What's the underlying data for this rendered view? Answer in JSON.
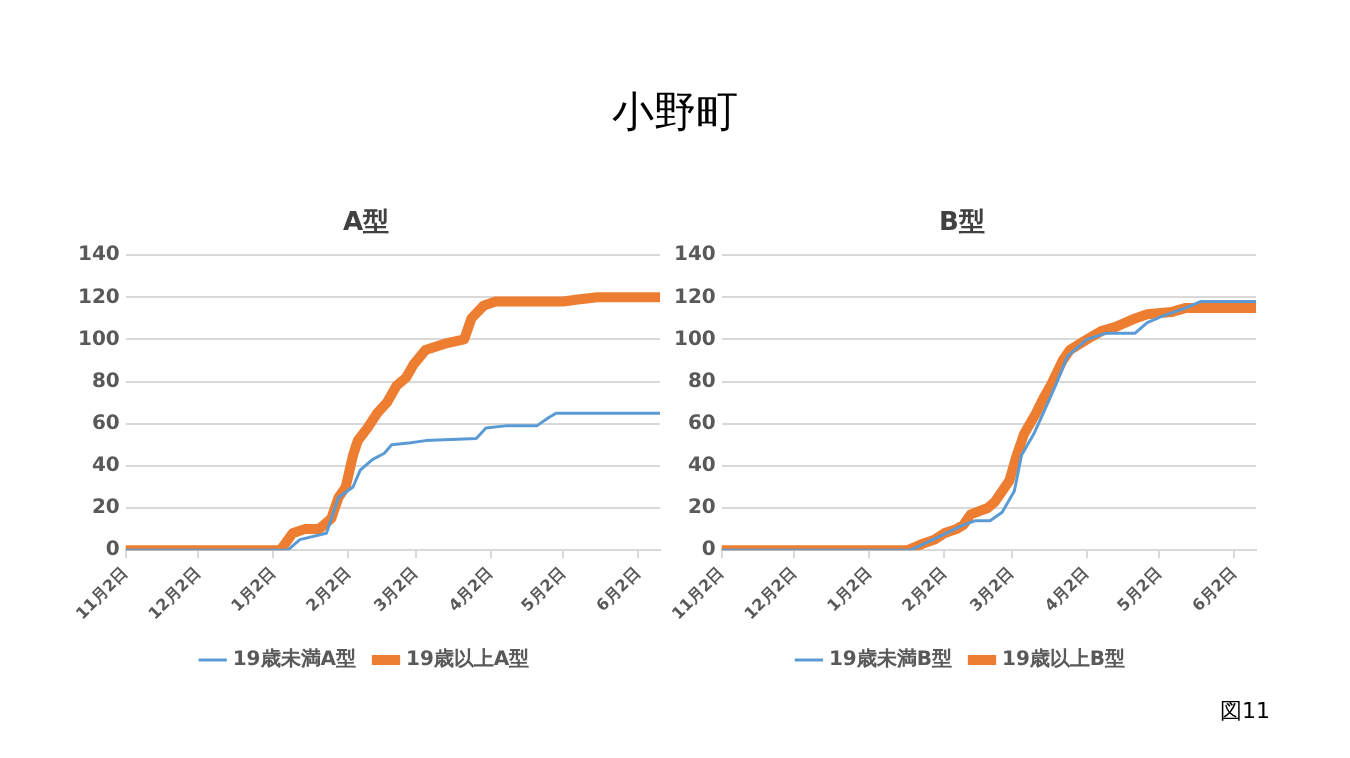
{
  "chart_data": [
    {
      "type": "line",
      "title": "小野町",
      "subtitle": "A型",
      "categories": [
        "11月2日",
        null,
        null,
        null,
        null,
        null,
        null,
        null,
        null,
        null,
        null,
        null,
        null,
        null,
        null,
        null,
        null,
        null,
        null,
        null,
        null,
        null,
        null,
        null,
        null,
        null,
        null,
        null,
        null,
        null,
        "12月2日",
        null,
        null,
        null,
        null,
        null,
        null,
        null,
        null,
        null,
        null,
        null,
        null,
        null,
        null,
        null,
        null,
        null,
        null,
        null,
        null,
        null,
        null,
        null,
        null,
        null,
        null,
        null,
        null,
        null,
        null,
        "1月2日",
        null,
        null,
        null,
        null,
        null,
        null,
        null,
        null,
        null,
        null,
        null,
        null,
        null,
        null,
        null,
        null,
        null,
        null,
        null,
        null,
        null,
        null,
        null,
        null,
        null,
        null,
        null,
        null,
        null,
        null,
        "2月2日",
        null,
        null,
        null,
        null,
        null,
        null,
        null,
        null,
        null,
        null,
        null,
        null,
        null,
        null,
        null,
        null,
        null,
        null,
        null,
        null,
        null,
        null,
        null,
        null,
        null,
        null,
        null,
        "3月2日",
        null,
        null,
        null,
        null,
        null,
        null,
        null,
        null,
        null,
        null,
        null,
        null,
        null,
        null,
        null,
        null,
        null,
        null,
        null,
        null,
        null,
        null,
        null,
        null,
        null,
        null,
        null,
        null,
        null,
        null,
        "4月2日",
        null,
        null,
        null,
        null,
        null,
        null,
        null,
        null,
        null,
        null,
        null,
        null,
        null,
        null,
        null,
        null,
        null,
        null,
        null,
        null,
        null,
        null,
        null,
        null,
        null,
        null,
        null,
        null,
        null,
        "5月2日",
        null,
        null,
        null,
        null,
        null,
        null,
        null,
        null,
        null,
        null,
        null,
        null,
        null,
        null,
        null,
        null,
        null,
        null,
        null,
        null,
        null,
        null,
        null,
        null,
        null,
        null,
        null,
        null,
        null,
        null,
        "6月2日",
        null,
        null,
        null,
        null,
        null,
        null,
        null,
        null,
        null
      ],
      "ylim": [
        0,
        140
      ],
      "yticks": [
        0,
        20,
        40,
        60,
        80,
        100,
        120,
        140
      ],
      "grid": "y",
      "legend": "bottom",
      "marker": "none",
      "line_style": "solid",
      "series": [
        {
          "name": "19歳未満A型",
          "color": "#5b9bd5",
          "values": [
            0,
            null,
            null,
            null,
            null,
            null,
            null,
            null,
            null,
            null,
            null,
            null,
            null,
            null,
            null,
            null,
            null,
            null,
            null,
            null,
            null,
            null,
            null,
            null,
            null,
            null,
            null,
            null,
            null,
            null,
            null,
            null,
            null,
            null,
            null,
            null,
            null,
            null,
            null,
            null,
            null,
            null,
            null,
            null,
            null,
            null,
            null,
            null,
            null,
            null,
            null,
            null,
            null,
            null,
            null,
            null,
            null,
            null,
            null,
            null,
            null,
            null,
            null,
            null,
            null,
            null,
            null,
            0,
            null,
            null,
            null,
            null,
            5,
            null,
            null,
            null,
            null,
            null,
            null,
            null,
            null,
            null,
            null,
            8,
            null,
            null,
            null,
            null,
            25,
            null,
            null,
            null,
            null,
            null,
            30,
            null,
            null,
            38,
            null,
            null,
            null,
            null,
            43,
            null,
            null,
            null,
            null,
            46,
            null,
            null,
            50,
            null,
            null,
            null,
            null,
            null,
            null,
            null,
            51,
            null,
            null,
            null,
            null,
            null,
            52,
            null,
            null,
            null,
            null,
            null,
            null,
            null,
            null,
            null,
            null,
            null,
            null,
            null,
            null,
            null,
            null,
            null,
            null,
            null,
            null,
            53,
            null,
            null,
            null,
            58,
            null,
            null,
            null,
            null,
            null,
            null,
            null,
            59,
            null,
            null,
            null,
            null,
            null,
            null,
            null,
            null,
            null,
            null,
            null,
            null,
            59,
            null,
            null,
            null,
            null,
            63,
            null,
            null,
            65,
            null,
            null,
            null,
            null,
            null,
            null,
            null,
            null,
            null,
            null,
            null,
            null,
            null,
            null,
            null,
            null,
            null,
            null,
            null,
            null,
            null,
            null,
            null,
            null,
            null,
            null,
            null,
            null,
            null,
            null,
            null,
            null,
            null,
            null,
            null,
            null,
            null,
            null,
            null,
            null,
            null,
            null,
            65
          ]
        },
        {
          "name": "19歳以上A型",
          "color": "#ed7d31",
          "values": [
            0,
            null,
            null,
            null,
            null,
            null,
            null,
            null,
            null,
            null,
            null,
            null,
            null,
            null,
            null,
            null,
            null,
            null,
            null,
            null,
            null,
            null,
            null,
            null,
            null,
            null,
            null,
            null,
            null,
            null,
            null,
            null,
            null,
            null,
            null,
            null,
            null,
            null,
            null,
            null,
            null,
            null,
            null,
            null,
            null,
            null,
            null,
            null,
            null,
            null,
            null,
            null,
            null,
            null,
            null,
            null,
            null,
            null,
            null,
            null,
            null,
            null,
            null,
            null,
            0,
            null,
            null,
            null,
            null,
            8,
            null,
            null,
            null,
            null,
            10,
            null,
            null,
            null,
            null,
            null,
            10,
            null,
            null,
            null,
            null,
            15,
            null,
            null,
            25,
            null,
            null,
            30,
            null,
            null,
            45,
            null,
            52,
            null,
            null,
            null,
            58,
            null,
            null,
            null,
            65,
            null,
            null,
            null,
            70,
            null,
            null,
            null,
            78,
            null,
            null,
            null,
            82,
            null,
            null,
            88,
            null,
            null,
            null,
            null,
            95,
            null,
            null,
            null,
            null,
            null,
            null,
            null,
            98,
            null,
            null,
            null,
            null,
            null,
            null,
            null,
            100,
            null,
            null,
            110,
            null,
            null,
            null,
            null,
            116,
            null,
            null,
            null,
            null,
            118,
            null,
            null,
            null,
            null,
            null,
            null,
            null,
            null,
            null,
            null,
            null,
            null,
            null,
            null,
            null,
            null,
            null,
            null,
            null,
            null,
            null,
            null,
            null,
            null,
            null,
            null,
            null,
            118,
            null,
            null,
            null,
            null,
            null,
            119,
            null,
            null,
            null,
            null,
            null,
            null,
            null,
            120,
            null,
            null,
            null,
            null,
            null,
            null,
            null,
            null,
            null,
            null,
            null,
            null,
            null,
            null,
            null,
            null,
            null,
            null,
            null,
            null,
            null,
            null,
            null,
            null,
            null,
            120
          ]
        }
      ]
    },
    {
      "type": "line",
      "subtitle": "B型",
      "annotations": [
        "図11"
      ],
      "categories": [
        "11月2日",
        null,
        null,
        null,
        null,
        null,
        null,
        null,
        null,
        null,
        null,
        null,
        null,
        null,
        null,
        null,
        null,
        null,
        null,
        null,
        null,
        null,
        null,
        null,
        null,
        null,
        null,
        null,
        null,
        null,
        "12月2日",
        null,
        null,
        null,
        null,
        null,
        null,
        null,
        null,
        null,
        null,
        null,
        null,
        null,
        null,
        null,
        null,
        null,
        null,
        null,
        null,
        null,
        null,
        null,
        null,
        null,
        null,
        null,
        null,
        null,
        null,
        "1月2日",
        null,
        null,
        null,
        null,
        null,
        null,
        null,
        null,
        null,
        null,
        null,
        null,
        null,
        null,
        null,
        null,
        null,
        null,
        null,
        null,
        null,
        null,
        null,
        null,
        null,
        null,
        null,
        null,
        null,
        null,
        "2月2日",
        null,
        null,
        null,
        null,
        null,
        null,
        null,
        null,
        null,
        null,
        null,
        null,
        null,
        null,
        null,
        null,
        null,
        null,
        null,
        null,
        null,
        null,
        null,
        null,
        null,
        null,
        null,
        "3月2日",
        null,
        null,
        null,
        null,
        null,
        null,
        null,
        null,
        null,
        null,
        null,
        null,
        null,
        null,
        null,
        null,
        null,
        null,
        null,
        null,
        null,
        null,
        null,
        null,
        null,
        null,
        null,
        null,
        null,
        null,
        "4月2日",
        null,
        null,
        null,
        null,
        null,
        null,
        null,
        null,
        null,
        null,
        null,
        null,
        null,
        null,
        null,
        null,
        null,
        null,
        null,
        null,
        null,
        null,
        null,
        null,
        null,
        null,
        null,
        null,
        null,
        "5月2日",
        null,
        null,
        null,
        null,
        null,
        null,
        null,
        null,
        null,
        null,
        null,
        null,
        null,
        null,
        null,
        null,
        null,
        null,
        null,
        null,
        null,
        null,
        null,
        null,
        null,
        null,
        null,
        null,
        null,
        null,
        "6月2日",
        null,
        null,
        null,
        null,
        null,
        null,
        null,
        null,
        null
      ],
      "ylim": [
        0,
        140
      ],
      "yticks": [
        0,
        20,
        40,
        60,
        80,
        100,
        120,
        140
      ],
      "grid": "y",
      "legend": "bottom",
      "marker": "none",
      "line_style": "solid",
      "series": [
        {
          "name": "19歳未満B型",
          "color": "#5b9bd5",
          "values": [
            0,
            null,
            null,
            null,
            null,
            null,
            null,
            null,
            null,
            null,
            null,
            null,
            null,
            null,
            null,
            null,
            null,
            null,
            null,
            null,
            null,
            null,
            null,
            null,
            null,
            null,
            null,
            null,
            null,
            null,
            null,
            null,
            null,
            null,
            null,
            null,
            null,
            null,
            null,
            null,
            null,
            null,
            null,
            null,
            null,
            null,
            null,
            null,
            null,
            null,
            null,
            null,
            null,
            null,
            null,
            null,
            null,
            null,
            null,
            null,
            null,
            null,
            null,
            null,
            null,
            null,
            null,
            null,
            null,
            null,
            null,
            null,
            null,
            null,
            null,
            null,
            null,
            null,
            0,
            null,
            null,
            null,
            null,
            null,
            null,
            null,
            null,
            null,
            null,
            null,
            null,
            7,
            null,
            null,
            null,
            null,
            null,
            null,
            null,
            null,
            12,
            null,
            null,
            null,
            null,
            14,
            null,
            null,
            null,
            null,
            null,
            14,
            null,
            null,
            null,
            null,
            18,
            null,
            null,
            null,
            null,
            28,
            null,
            null,
            45,
            null,
            null,
            null,
            null,
            55,
            null,
            null,
            null,
            65,
            null,
            null,
            null,
            null,
            78,
            null,
            null,
            null,
            null,
            92,
            null,
            null,
            null,
            null,
            null,
            null,
            null,
            100,
            null,
            null,
            null,
            null,
            null,
            null,
            null,
            103,
            null,
            null,
            null,
            null,
            null,
            null,
            null,
            null,
            null,
            null,
            null,
            103,
            null,
            null,
            null,
            null,
            108,
            null,
            null,
            null,
            null,
            null,
            111,
            null,
            null,
            null,
            null,
            null,
            null,
            null,
            null,
            null,
            115,
            null,
            null,
            null,
            null,
            null,
            118,
            null,
            null,
            null,
            null,
            null,
            null,
            null,
            null,
            null,
            null,
            null,
            null,
            null,
            null,
            null,
            null,
            null,
            null,
            null,
            null,
            null,
            null,
            118
          ]
        },
        {
          "name": "19歳以上B型",
          "color": "#ed7d31",
          "values": [
            0,
            null,
            null,
            null,
            null,
            null,
            null,
            null,
            null,
            null,
            null,
            null,
            null,
            null,
            null,
            null,
            null,
            null,
            null,
            null,
            null,
            null,
            null,
            null,
            null,
            null,
            null,
            null,
            null,
            null,
            null,
            null,
            null,
            null,
            null,
            null,
            null,
            null,
            null,
            null,
            null,
            null,
            null,
            null,
            null,
            null,
            null,
            null,
            null,
            null,
            null,
            null,
            null,
            null,
            null,
            null,
            null,
            null,
            null,
            null,
            null,
            null,
            null,
            null,
            null,
            null,
            null,
            null,
            null,
            null,
            null,
            null,
            null,
            null,
            null,
            null,
            null,
            0,
            null,
            null,
            null,
            null,
            null,
            3,
            null,
            null,
            null,
            null,
            5,
            null,
            null,
            null,
            8,
            null,
            null,
            null,
            null,
            10,
            null,
            null,
            12,
            null,
            null,
            17,
            null,
            null,
            null,
            null,
            null,
            null,
            20,
            null,
            null,
            23,
            null,
            null,
            28,
            null,
            null,
            33,
            null,
            null,
            45,
            null,
            null,
            55,
            null,
            null,
            null,
            null,
            65,
            null,
            null,
            72,
            null,
            null,
            78,
            null,
            null,
            null,
            null,
            90,
            null,
            null,
            95,
            null,
            null,
            null,
            null,
            null,
            null,
            100,
            null,
            null,
            null,
            null,
            null,
            104,
            null,
            null,
            null,
            null,
            null,
            106,
            null,
            null,
            null,
            null,
            null,
            null,
            null,
            110,
            null,
            null,
            null,
            null,
            112,
            null,
            null,
            null,
            null,
            null,
            null,
            null,
            null,
            null,
            113,
            null,
            null,
            null,
            null,
            null,
            115,
            null,
            null,
            null,
            null,
            null,
            null,
            null,
            null,
            null,
            null,
            null,
            null,
            null,
            null,
            null,
            null,
            null,
            null,
            null,
            null,
            null,
            null,
            null,
            null,
            null,
            null,
            null,
            null,
            115
          ]
        }
      ]
    }
  ]
}
